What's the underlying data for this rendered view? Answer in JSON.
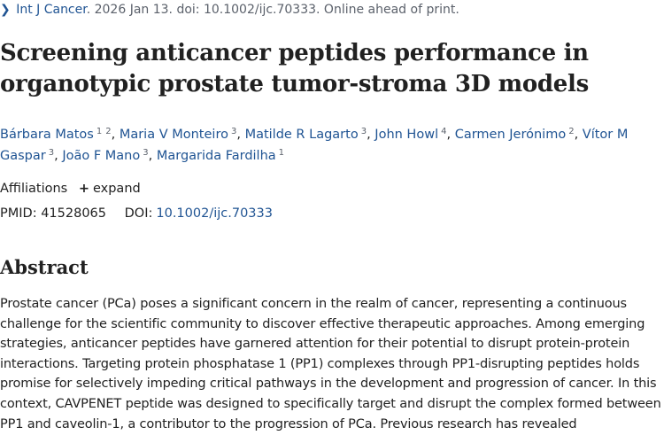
{
  "citation": {
    "chevron": "❯",
    "journal": "Int J Cancer",
    "rest": ". 2026 Jan 13. doi: 10.1002/ijc.70333. Online ahead of print."
  },
  "title": "Screening anticancer peptides performance in organotypic prostate tumor-stroma 3D models",
  "authors": [
    {
      "name": "Bárbara Matos",
      "affiliations": [
        "1",
        "2"
      ]
    },
    {
      "name": "Maria V Monteiro",
      "affiliations": [
        "3"
      ]
    },
    {
      "name": "Matilde R Lagarto",
      "affiliations": [
        "3"
      ]
    },
    {
      "name": "John Howl",
      "affiliations": [
        "4"
      ]
    },
    {
      "name": "Carmen Jerónimo",
      "affiliations": [
        "2"
      ]
    },
    {
      "name": "Vítor M Gaspar",
      "affiliations": [
        "3"
      ]
    },
    {
      "name": "João F Mano",
      "affiliations": [
        "3"
      ]
    },
    {
      "name": "Margarida Fardilha",
      "affiliations": [
        "1"
      ]
    }
  ],
  "affiliations": {
    "label": "Affiliations",
    "expand_icon": "+",
    "expand_label": "expand"
  },
  "ids": {
    "pmid_label": "PMID:",
    "pmid": "41528065",
    "doi_label": "DOI:",
    "doi": "10.1002/ijc.70333"
  },
  "abstract": {
    "heading": "Abstract",
    "text": "Prostate cancer (PCa) poses a significant concern in the realm of cancer, representing a continuous challenge for the scientific community to discover effective therapeutic approaches. Among emerging strategies, anticancer peptides have garnered attention for their potential to disrupt protein-protein interactions. Targeting protein phosphatase 1 (PP1) complexes through PP1-disrupting peptides holds promise for selectively impeding critical pathways in the development and progression of cancer. In this context, CAVPENET peptide was designed to specifically target and disrupt the complex formed between PP1 and caveolin-1, a contributor to the progression of PCa. Previous research has revealed"
  },
  "colors": {
    "link": "#205493",
    "text": "#212121",
    "muted": "#5b616b"
  }
}
